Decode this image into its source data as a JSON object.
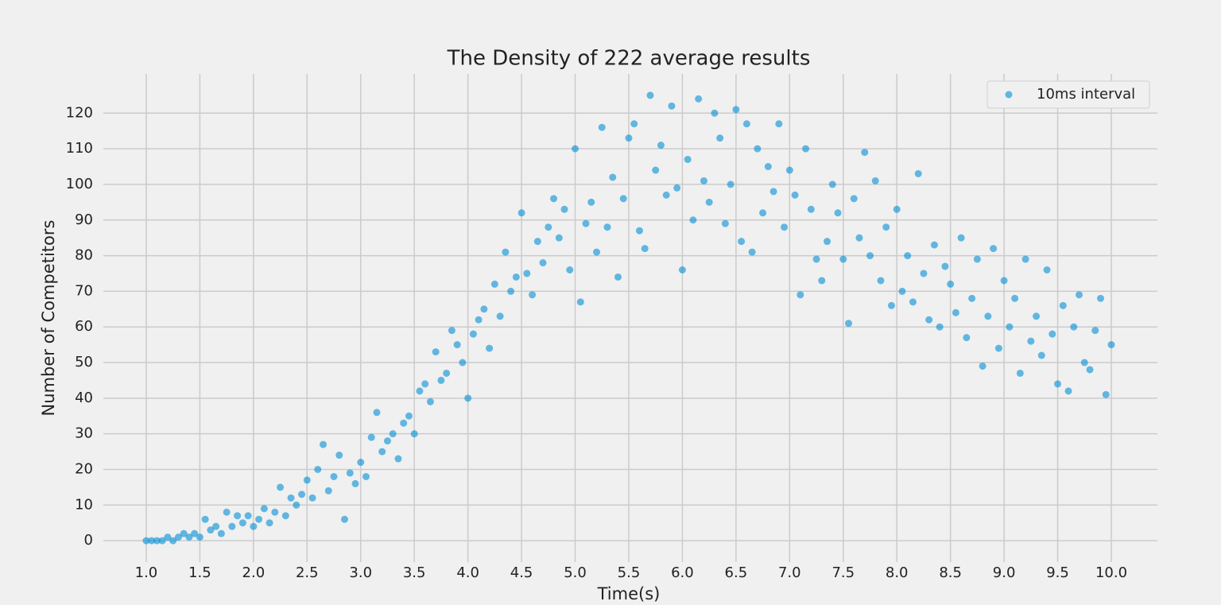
{
  "chart_data": {
    "type": "scatter",
    "title": "The Density of 222 average results",
    "x_label": "Time(s)",
    "y_label": "Number of Competitors",
    "xlim": [
      0.6,
      10.43
    ],
    "ylim": [
      -6,
      131
    ],
    "xticks": [
      {
        "value": 1,
        "label": "1.0"
      },
      1.5,
      {
        "value": 2,
        "label": "2.0"
      },
      2.5,
      {
        "value": 3,
        "label": "3.0"
      },
      3.5,
      {
        "value": 4,
        "label": "4.0"
      },
      4.5,
      {
        "value": 5,
        "label": "5.0"
      },
      5.5,
      {
        "value": 6,
        "label": "6.0"
      },
      6.5,
      {
        "value": 7,
        "label": "7.0"
      },
      7.5,
      {
        "value": 8,
        "label": "8.0"
      },
      8.5,
      {
        "value": 9,
        "label": "9.0"
      },
      9.5,
      {
        "value": 10,
        "label": "10.0"
      }
    ],
    "yticks": [
      0,
      10,
      20,
      30,
      40,
      50,
      60,
      70,
      80,
      90,
      100,
      110,
      120
    ],
    "grid": true,
    "legend_position": "upper right",
    "series": [
      {
        "name": "10ms interval",
        "color": "#008fd5",
        "x": [
          1.0,
          1.05,
          1.1,
          1.15,
          1.2,
          1.25,
          1.3,
          1.35,
          1.4,
          1.45,
          1.5,
          1.55,
          1.6,
          1.65,
          1.7,
          1.75,
          1.8,
          1.85,
          1.9,
          1.95,
          2.0,
          2.05,
          2.1,
          2.15,
          2.2,
          2.25,
          2.3,
          2.35,
          2.4,
          2.45,
          2.5,
          2.55,
          2.6,
          2.65,
          2.7,
          2.75,
          2.8,
          2.85,
          2.9,
          2.95,
          3.0,
          3.05,
          3.1,
          3.15,
          3.2,
          3.25,
          3.3,
          3.35,
          3.4,
          3.45,
          3.5,
          3.55,
          3.6,
          3.65,
          3.7,
          3.75,
          3.8,
          3.85,
          3.9,
          3.95,
          4.0,
          4.05,
          4.1,
          4.15,
          4.2,
          4.25,
          4.3,
          4.35,
          4.4,
          4.45,
          4.5,
          4.55,
          4.6,
          4.65,
          4.7,
          4.75,
          4.8,
          4.85,
          4.9,
          4.95,
          5.0,
          5.05,
          5.1,
          5.15,
          5.2,
          5.25,
          5.3,
          5.35,
          5.4,
          5.45,
          5.5,
          5.55,
          5.6,
          5.65,
          5.7,
          5.75,
          5.8,
          5.85,
          5.9,
          5.95,
          6.0,
          6.05,
          6.1,
          6.15,
          6.2,
          6.25,
          6.3,
          6.35,
          6.4,
          6.45,
          6.5,
          6.55,
          6.6,
          6.65,
          6.7,
          6.75,
          6.8,
          6.85,
          6.9,
          6.95,
          7.0,
          7.05,
          7.1,
          7.15,
          7.2,
          7.25,
          7.3,
          7.35,
          7.4,
          7.45,
          7.5,
          7.55,
          7.6,
          7.65,
          7.7,
          7.75,
          7.8,
          7.85,
          7.9,
          7.95,
          8.0,
          8.05,
          8.1,
          8.15,
          8.2,
          8.25,
          8.3,
          8.35,
          8.4,
          8.45,
          8.5,
          8.55,
          8.6,
          8.65,
          8.7,
          8.75,
          8.8,
          8.85,
          8.9,
          8.95,
          9.0,
          9.05,
          9.1,
          9.15,
          9.2,
          9.25,
          9.3,
          9.35,
          9.4,
          9.45,
          9.5,
          9.55,
          9.6,
          9.65,
          9.7,
          9.75,
          9.8,
          9.85,
          9.9,
          9.95,
          10.0
        ],
        "values": [
          0,
          0,
          0,
          0,
          1,
          0,
          1,
          2,
          1,
          2,
          1,
          6,
          3,
          4,
          2,
          8,
          4,
          7,
          5,
          7,
          4,
          6,
          9,
          5,
          8,
          15,
          7,
          12,
          10,
          13,
          17,
          12,
          20,
          27,
          14,
          18,
          24,
          6,
          19,
          16,
          22,
          18,
          29,
          36,
          25,
          28,
          30,
          23,
          33,
          35,
          30,
          42,
          44,
          39,
          53,
          45,
          47,
          59,
          55,
          50,
          40,
          58,
          62,
          65,
          54,
          72,
          63,
          81,
          70,
          74,
          92,
          75,
          69,
          84,
          78,
          88,
          96,
          85,
          93,
          76,
          110,
          67,
          89,
          95,
          81,
          116,
          88,
          102,
          74,
          96,
          113,
          117,
          87,
          82,
          125,
          104,
          111,
          97,
          122,
          99,
          76,
          107,
          90,
          124,
          101,
          95,
          120,
          113,
          89,
          100,
          121,
          84,
          117,
          81,
          110,
          92,
          105,
          98,
          117,
          88,
          104,
          97,
          69,
          110,
          93,
          79,
          73,
          84,
          100,
          92,
          79,
          61,
          96,
          85,
          109,
          80,
          101,
          73,
          88,
          66,
          93,
          70,
          80,
          67,
          103,
          75,
          62,
          83,
          60,
          77,
          72,
          64,
          85,
          57,
          68,
          79,
          49,
          63,
          82,
          54,
          73,
          60,
          68,
          47,
          79,
          56,
          63,
          52,
          76,
          58,
          44,
          66,
          42,
          60,
          69,
          50,
          48,
          59,
          68,
          41,
          55
        ]
      }
    ]
  }
}
